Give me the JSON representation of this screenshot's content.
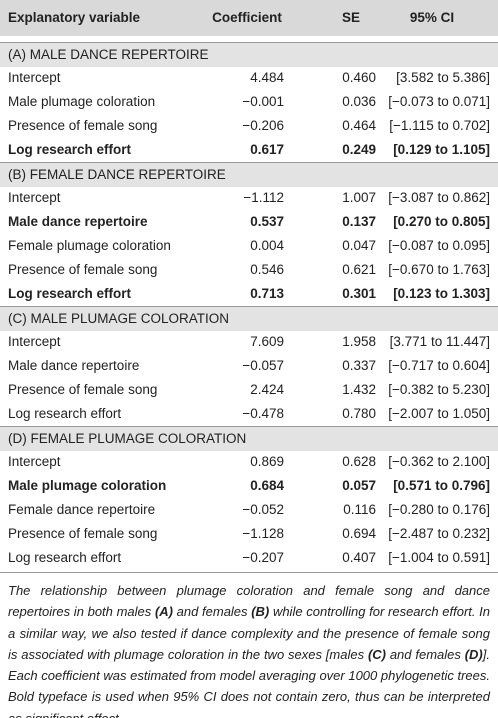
{
  "table": {
    "header": [
      "Explanatory variable",
      "Coefficient",
      "SE",
      "95% CI"
    ],
    "sections": [
      {
        "title": "(A) MALE DANCE REPERTOIRE",
        "rows": [
          {
            "cells": [
              "Intercept",
              "4.484",
              "0.460",
              "[3.582 to 5.386]"
            ],
            "bold": false
          },
          {
            "cells": [
              "Male plumage coloration",
              "−0.001",
              "0.036",
              "[−0.073 to 0.071]"
            ],
            "bold": false
          },
          {
            "cells": [
              "Presence of female song",
              "−0.206",
              "0.464",
              "[−1.115 to 0.702]"
            ],
            "bold": false
          },
          {
            "cells": [
              "Log research effort",
              "0.617",
              "0.249",
              "[0.129 to 1.105]"
            ],
            "bold": true
          }
        ]
      },
      {
        "title": "(B) FEMALE DANCE REPERTOIRE",
        "rows": [
          {
            "cells": [
              "Intercept",
              "−1.112",
              "1.007",
              "[−3.087 to 0.862]"
            ],
            "bold": false
          },
          {
            "cells": [
              "Male dance repertoire",
              "0.537",
              "0.137",
              "[0.270 to 0.805]"
            ],
            "bold": true
          },
          {
            "cells": [
              "Female plumage coloration",
              "0.004",
              "0.047",
              "[−0.087 to 0.095]"
            ],
            "bold": false
          },
          {
            "cells": [
              "Presence of female song",
              "0.546",
              "0.621",
              "[−0.670 to 1.763]"
            ],
            "bold": false
          },
          {
            "cells": [
              "Log research effort",
              "0.713",
              "0.301",
              "[0.123 to 1.303]"
            ],
            "bold": true
          }
        ]
      },
      {
        "title": "(C) MALE PLUMAGE COLORATION",
        "rows": [
          {
            "cells": [
              "Intercept",
              "7.609",
              "1.958",
              "[3.771 to 11.447]"
            ],
            "bold": false
          },
          {
            "cells": [
              "Male dance repertoire",
              "−0.057",
              "0.337",
              "[−0.717 to 0.604]"
            ],
            "bold": false
          },
          {
            "cells": [
              "Presence of female song",
              "2.424",
              "1.432",
              "[−0.382 to 5.230]"
            ],
            "bold": false
          },
          {
            "cells": [
              "Log research effort",
              "−0.478",
              "0.780",
              "[−2.007 to 1.050]"
            ],
            "bold": false
          }
        ]
      },
      {
        "title": "(D) FEMALE PLUMAGE COLORATION",
        "rows": [
          {
            "cells": [
              "Intercept",
              "0.869",
              "0.628",
              "[−0.362 to 2.100]"
            ],
            "bold": false
          },
          {
            "cells": [
              "Male plumage coloration",
              "0.684",
              "0.057",
              "[0.571 to 0.796]"
            ],
            "bold": true
          },
          {
            "cells": [
              "Female dance repertoire",
              "−0.052",
              "0.116",
              "[−0.280 to 0.176]"
            ],
            "bold": false
          },
          {
            "cells": [
              "Presence of female song",
              "−1.128",
              "0.694",
              "[−2.487 to 0.232]"
            ],
            "bold": false
          },
          {
            "cells": [
              "Log research effort",
              "−0.207",
              "0.407",
              "[−1.004 to 0.591]"
            ],
            "bold": false
          }
        ]
      }
    ]
  },
  "caption": [
    {
      "text": "The relationship between plumage coloration and female song and dance repertoires in both males ",
      "bold": false
    },
    {
      "text": "(A)",
      "bold": true
    },
    {
      "text": " and females ",
      "bold": false
    },
    {
      "text": "(B)",
      "bold": true
    },
    {
      "text": " while controlling for research effort. In a similar way, we also tested if dance complexity and the presence of female song is associated with plumage coloration in the two sexes [males ",
      "bold": false
    },
    {
      "text": "(C)",
      "bold": true
    },
    {
      "text": " and females ",
      "bold": false
    },
    {
      "text": "(D)",
      "bold": true
    },
    {
      "text": "]. Each coefficient was estimated from model averaging over 1000 phylogenetic trees. Bold typeface is used when 95% CI does not contain zero, thus can be interpreted as significant effect.",
      "bold": false
    }
  ]
}
